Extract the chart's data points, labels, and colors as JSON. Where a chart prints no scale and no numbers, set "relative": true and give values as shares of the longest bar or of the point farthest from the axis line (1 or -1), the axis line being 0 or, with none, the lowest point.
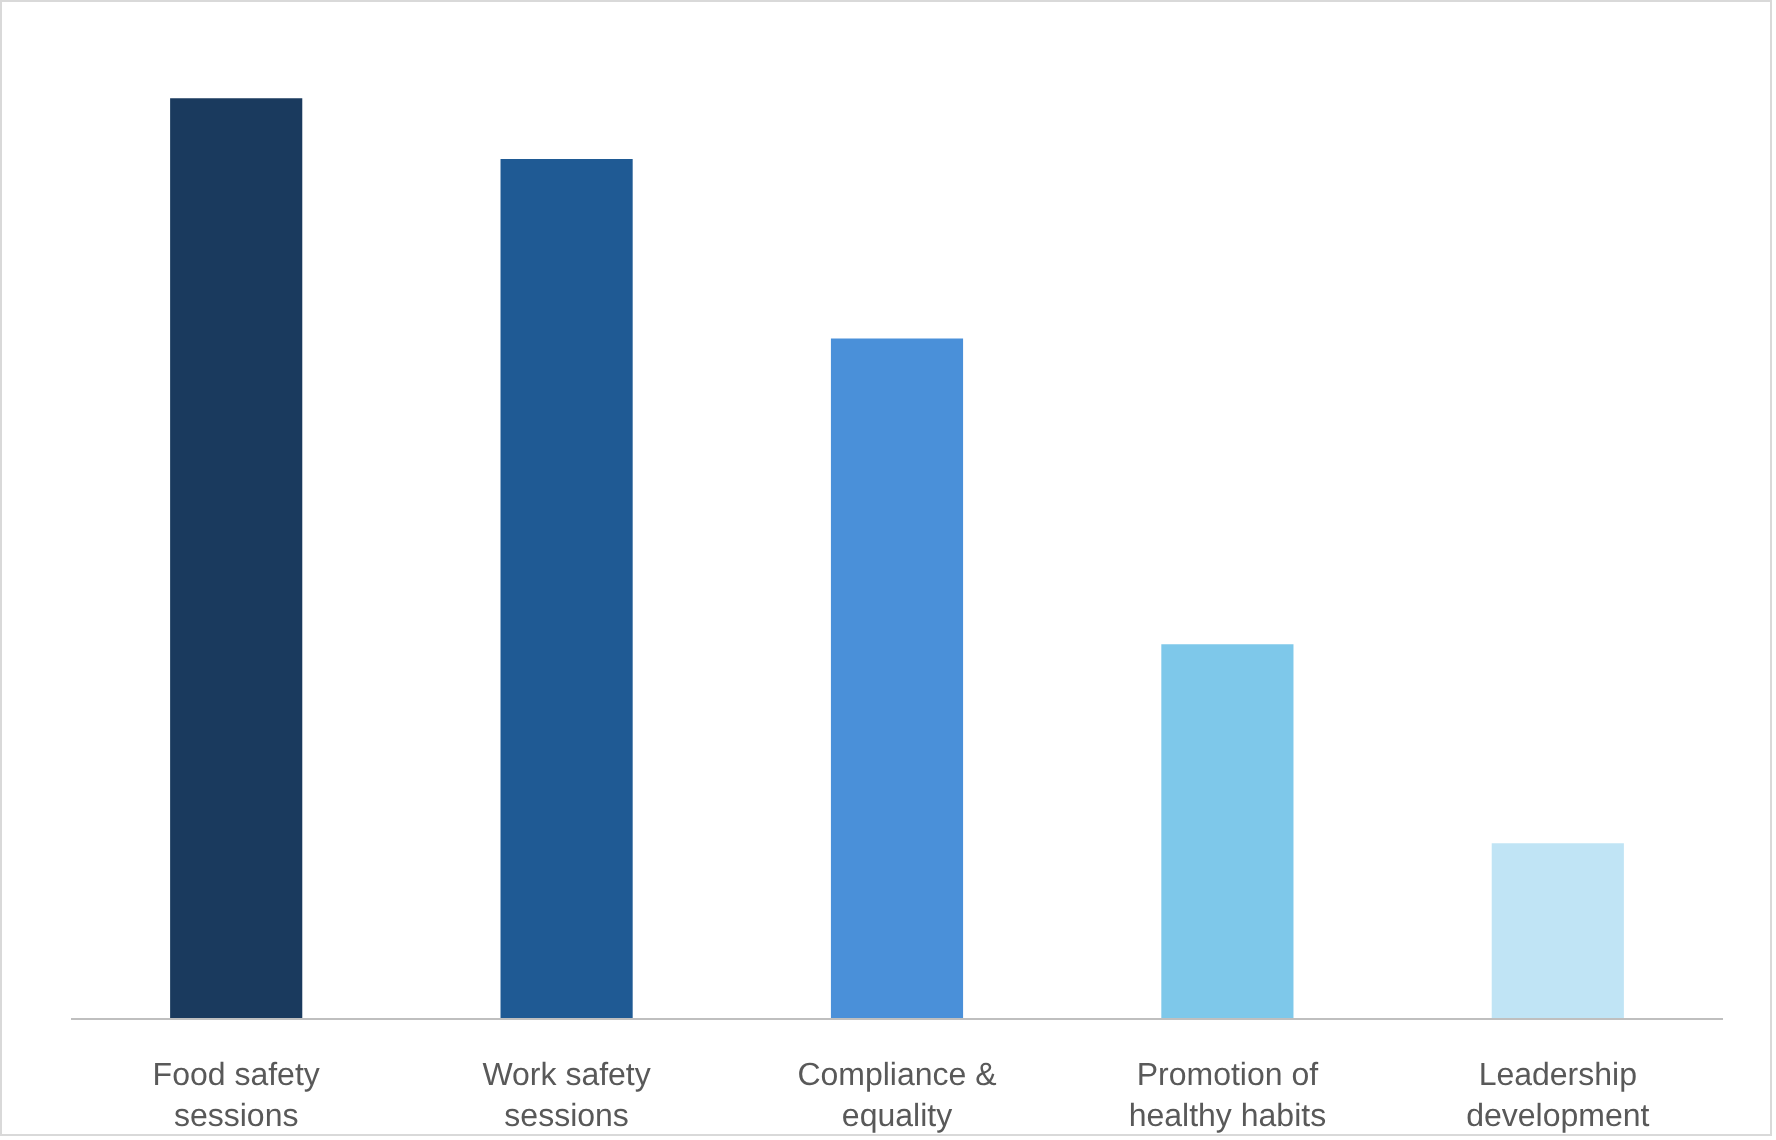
{
  "chart_data": {
    "type": "bar",
    "relative": true,
    "categories": [
      "Food safety sessions",
      "Work safety sessions",
      "Compliance & equality",
      "Promotion of healthy habits",
      "Leadership development"
    ],
    "values": [
      1,
      0.934,
      0.739,
      0.407,
      0.191
    ],
    "colors": [
      "#1a3a5e",
      "#1f5a94",
      "#4a90d9",
      "#7ec8ea",
      "#c0e4f5"
    ],
    "grid": false
  }
}
